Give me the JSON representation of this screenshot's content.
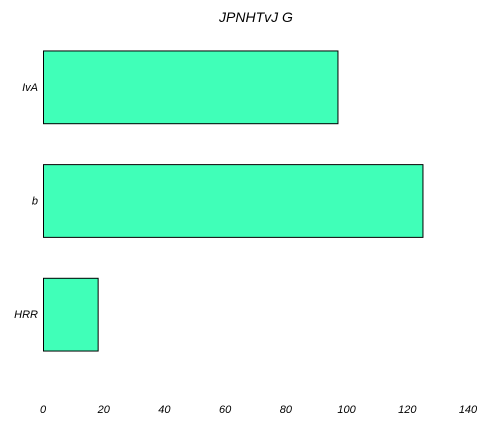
{
  "chart_data": {
    "type": "bar",
    "orientation": "horizontal",
    "title": "JPNHTvJ G",
    "xlabel": "",
    "ylabel": "",
    "categories": [
      "IvA",
      "b",
      "HRR"
    ],
    "values": [
      97,
      125,
      18
    ],
    "xlim": [
      0,
      140
    ],
    "xticks": [
      0,
      20,
      40,
      60,
      80,
      100,
      120,
      140
    ],
    "grid": false,
    "bar_color": "#40ffb8",
    "edge_color": "#000000"
  }
}
